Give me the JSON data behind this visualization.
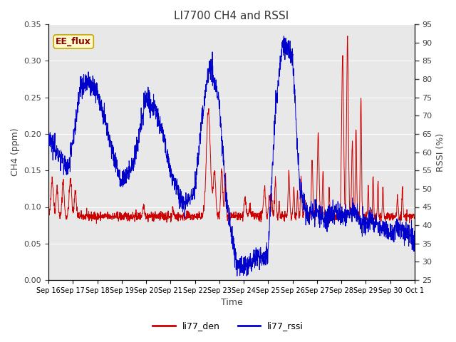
{
  "title": "LI7700 CH4 and RSSI",
  "xlabel": "Time",
  "ylabel_left": "CH4 (ppm)",
  "ylabel_right": "RSSI (%)",
  "annotation_text": "EE_flux",
  "annotation_color": "#8B0000",
  "annotation_bg": "#FFFACD",
  "annotation_border": "#C8A800",
  "left_ylim": [
    0.0,
    0.35
  ],
  "right_ylim": [
    25,
    95
  ],
  "left_yticks": [
    0.0,
    0.05,
    0.1,
    0.15,
    0.2,
    0.25,
    0.3,
    0.35
  ],
  "right_yticks": [
    25,
    30,
    35,
    40,
    45,
    50,
    55,
    60,
    65,
    70,
    75,
    80,
    85,
    90,
    95
  ],
  "color_red": "#CC0000",
  "color_blue": "#0000CC",
  "legend_labels": [
    "li77_den",
    "li77_rssi"
  ],
  "bg_color": "#E8E8E8",
  "x_tick_labels": [
    "Sep 16",
    "Sep 17",
    "Sep 18",
    "Sep 19",
    "Sep 20",
    "Sep 21",
    "Sep 22",
    "Sep 23",
    "Sep 24",
    "Sep 25",
    "Sep 26",
    "Sep 27",
    "Sep 28",
    "Sep 29",
    "Sep 30",
    "Oct 1"
  ],
  "seed": 42,
  "figsize": [
    6.4,
    4.8
  ],
  "dpi": 100
}
